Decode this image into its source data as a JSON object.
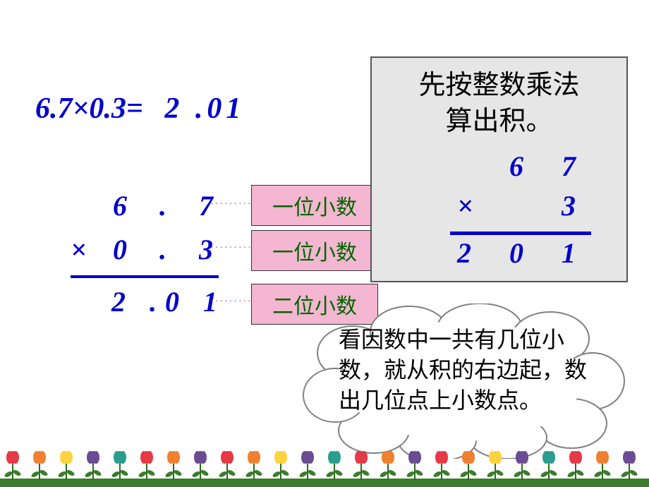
{
  "colors": {
    "blue": "#0000cc",
    "pink_box": "#f4b6d0",
    "green_text": "#006600",
    "gray_panel": "#e6e6e6",
    "dots": "#cc3399"
  },
  "equation": {
    "lhs": "6.7×0.3=",
    "rhs": "2 .01"
  },
  "vertical_mult": {
    "row1": "6 . 7",
    "op": "×",
    "row2": "0 . 3",
    "result": "2 .0  1"
  },
  "labels": {
    "one_decimal_a": "一位小数",
    "one_decimal_b": "一位小数",
    "two_decimal": "二位小数"
  },
  "panel": {
    "heading_l1": "先按整数乘法",
    "heading_l2": "算出积。",
    "int_mult": {
      "row1": "6 7",
      "op": "×",
      "row2": "3",
      "result": "2 0 1"
    }
  },
  "cloud_text": "看因数中一共有几位小数，就从积的右边起，数出几位点上小数点。",
  "flower_colors": [
    "#e63946",
    "#f08030",
    "#ffd23f",
    "#6a4c93",
    "#2a9d8f",
    "#e63946",
    "#f08030",
    "#6a4c93"
  ]
}
